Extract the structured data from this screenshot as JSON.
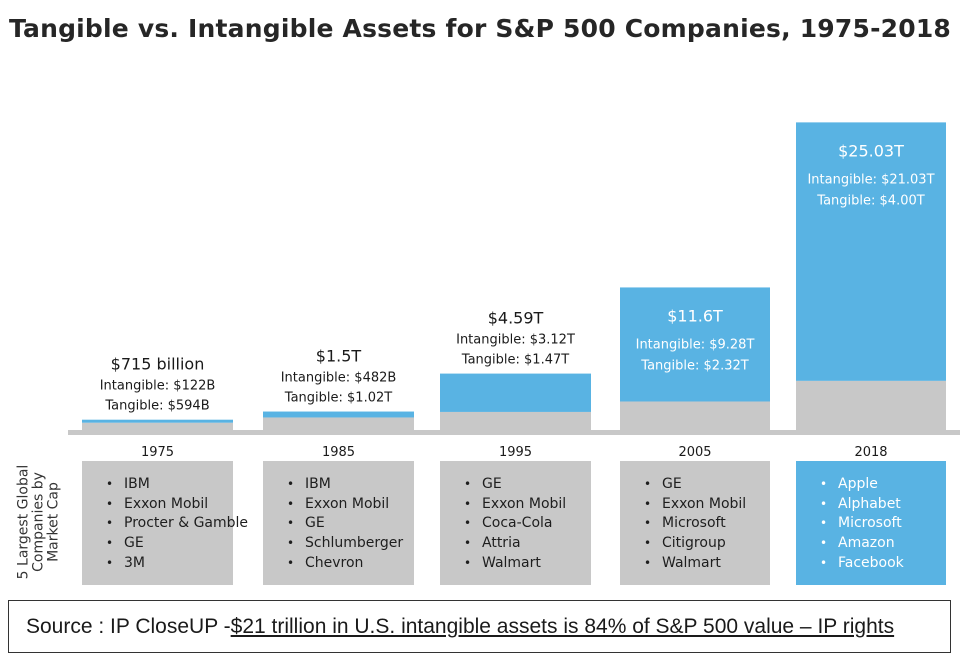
{
  "chart_data": {
    "type": "bar",
    "stacked": true,
    "title": "Tangible vs. Intangible Assets for S&P 500 Companies, 1975-2018",
    "categories": [
      "1975",
      "1985",
      "1995",
      "2005",
      "2018"
    ],
    "series": [
      {
        "name": "Tangible",
        "color": "#c8c8c8",
        "values": [
          0.594,
          1.02,
          1.47,
          2.32,
          4.0
        ]
      },
      {
        "name": "Intangible",
        "color": "#59b3e3",
        "values": [
          0.122,
          0.482,
          3.12,
          9.28,
          21.03
        ]
      }
    ],
    "totals": [
      0.715,
      1.5,
      4.59,
      11.6,
      25.03
    ],
    "unit": "Trillion USD",
    "labels": [
      {
        "total": "$715 billion",
        "intangible": "Intangible: $122B",
        "tangible": "Tangible: $594B",
        "placement": "above"
      },
      {
        "total": "$1.5T",
        "intangible": "Intangible: $482B",
        "tangible": "Tangible: $1.02T",
        "placement": "above"
      },
      {
        "total": "$4.59T",
        "intangible": "Intangible: $3.12T",
        "tangible": "Tangible: $1.47T",
        "placement": "above"
      },
      {
        "total": "$11.6T",
        "intangible": "Intangible: $9.28T",
        "tangible": "Tangible: $2.32T",
        "placement": "inside"
      },
      {
        "total": "$25.03T",
        "intangible": "Intangible: $21.03T",
        "tangible": "Tangible: $4.00T",
        "placement": "inside"
      }
    ],
    "ylim": [
      0,
      26.2
    ]
  },
  "companies_label": "5 Largest Global Companies by Market Cap",
  "companies": [
    {
      "year": "1975",
      "highlight": false,
      "names": [
        "IBM",
        "Exxon Mobil",
        "Procter & Gamble",
        "GE",
        "3M"
      ]
    },
    {
      "year": "1985",
      "highlight": false,
      "names": [
        "IBM",
        "Exxon Mobil",
        "GE",
        "Schlumberger",
        "Chevron"
      ]
    },
    {
      "year": "1995",
      "highlight": false,
      "names": [
        "GE",
        "Exxon Mobil",
        "Coca-Cola",
        "Attria",
        "Walmart"
      ]
    },
    {
      "year": "2005",
      "highlight": false,
      "names": [
        "GE",
        "Exxon Mobil",
        "Microsoft",
        "Citigroup",
        "Walmart"
      ]
    },
    {
      "year": "2018",
      "highlight": true,
      "names": [
        "Apple",
        "Alphabet",
        "Microsoft",
        "Amazon",
        "Facebook"
      ]
    }
  ],
  "colors": {
    "intangible": "#59b3e3",
    "tangible": "#c8c8c8",
    "baseline": "#c8c8c8",
    "company_box": "#c8c8c8",
    "company_box_highlight": "#59b3e3"
  },
  "source": {
    "prefix": "Source : IP CloseUP - ",
    "link": "$21 trillion in U.S. intangible assets is 84% of S&P 500 value – IP rights"
  }
}
